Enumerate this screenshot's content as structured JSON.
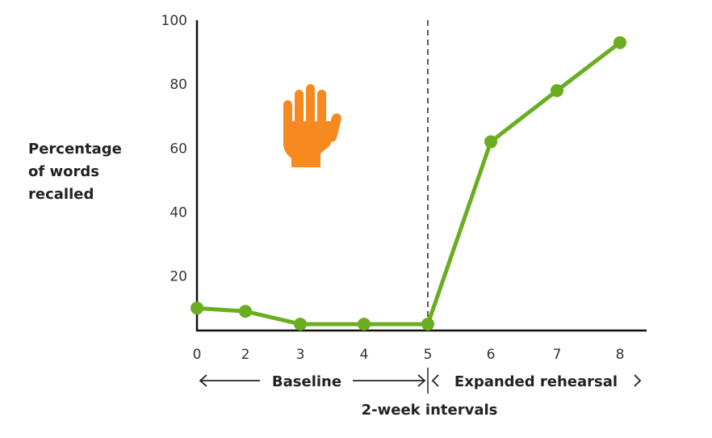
{
  "chart_data": {
    "type": "line",
    "title": "",
    "xlabel": "2-week intervals",
    "ylabel_lines": [
      "Percentage",
      "of words",
      "recalled"
    ],
    "categories": [
      "0",
      "2",
      "3",
      "4",
      "5",
      "6",
      "7",
      "8"
    ],
    "values": [
      10,
      9,
      5,
      5,
      5,
      62,
      78,
      93
    ],
    "ylim": [
      3,
      100
    ],
    "yticks": [
      20,
      40,
      60,
      80,
      100
    ],
    "grid": false,
    "phase_divider_at": "5",
    "phases": [
      {
        "label": "Baseline",
        "from": "0",
        "to": "5"
      },
      {
        "label": "Expanded rehearsal",
        "from": "5",
        "to": "8"
      }
    ],
    "line_color": "#6aad20",
    "icon": "raised-hand-icon",
    "icon_color": "#f68a20"
  }
}
